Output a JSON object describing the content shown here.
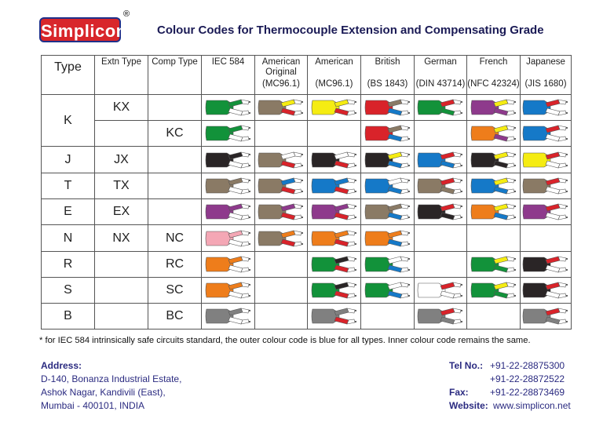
{
  "header": {
    "logo": "Simplicon",
    "registered": "®",
    "title": "Colour Codes for Thermocouple Extension and Compensating Grade"
  },
  "table": {
    "columns": [
      {
        "name": "Type"
      },
      {
        "name": "Extn Type"
      },
      {
        "name": "Comp Type"
      },
      {
        "name": "IEC 584"
      },
      {
        "name": "American Original",
        "standard": "(MC96.1)"
      },
      {
        "name": "American",
        "standard": "(MC96.1)"
      },
      {
        "name": "British",
        "standard": "(BS 1843)"
      },
      {
        "name": "German",
        "standard": "(DIN 43714)"
      },
      {
        "name": "French",
        "standard": "(NFC 42324)"
      },
      {
        "name": "Japanese",
        "standard": "(JIS 1680)"
      }
    ],
    "rows": [
      {
        "type": "K",
        "extn": "KX"
      },
      {
        "comp": "KC"
      },
      {
        "type": "J",
        "extn": "JX"
      },
      {
        "type": "T",
        "extn": "TX"
      },
      {
        "type": "E",
        "extn": "EX"
      },
      {
        "type": "N",
        "extn": "NX",
        "comp": "NC"
      },
      {
        "type": "R",
        "comp": "RC"
      },
      {
        "type": "S",
        "comp": "SC"
      },
      {
        "type": "B",
        "comp": "BC"
      }
    ]
  },
  "note": "* for IEC 584 intrinsically safe circuits standard, the outer colour code is blue for all types. Inner colour code remains the same.",
  "address": {
    "label": "Address:",
    "lines": [
      "D-140, Bonanza Industrial Estate,",
      "Ashok Nagar, Kandivili (East),",
      "Mumbai - 400101, INDIA"
    ]
  },
  "contacts": [
    {
      "label": "Tel No.:",
      "values": [
        "+91-22-28875300",
        "+91-22-28872522"
      ]
    },
    {
      "label": "Fax:",
      "values": [
        "+91-22-28873469"
      ]
    },
    {
      "label": "Website:",
      "values": [
        "www.simplicon.net"
      ]
    }
  ]
}
